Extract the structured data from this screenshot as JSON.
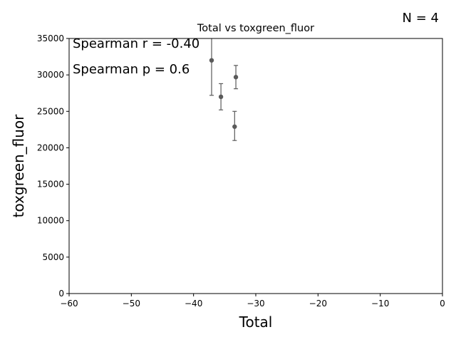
{
  "chart_data": {
    "type": "scatter",
    "title": "Total vs toxgreen_fluor",
    "xlabel": "Total",
    "ylabel": "toxgreen_fluor",
    "xlim": [
      -60,
      0
    ],
    "ylim": [
      0,
      35000
    ],
    "xticks": [
      "−60",
      "−50",
      "−40",
      "−30",
      "−20",
      "−10",
      "0"
    ],
    "xtick_values": [
      -60,
      -50,
      -40,
      -30,
      -20,
      -10,
      0
    ],
    "yticks": [
      "0",
      "5000",
      "10000",
      "15000",
      "20000",
      "25000",
      "30000",
      "35000"
    ],
    "ytick_values": [
      0,
      5000,
      10000,
      15000,
      20000,
      25000,
      30000,
      35000
    ],
    "grid": false,
    "marker_color": "#5a5a5a",
    "points": [
      {
        "x": -37.1,
        "y": 32000,
        "err_low": 27200,
        "err_high": 36800
      },
      {
        "x": -35.6,
        "y": 27000,
        "err_low": 25200,
        "err_high": 28800
      },
      {
        "x": -33.2,
        "y": 29700,
        "err_low": 28100,
        "err_high": 31300
      },
      {
        "x": -33.4,
        "y": 22900,
        "err_low": 21000,
        "err_high": 25000
      }
    ],
    "annotations": {
      "spearman_r": "Spearman r = -0.40",
      "spearman_p": "Spearman p = 0.6",
      "n": "N = 4"
    }
  }
}
